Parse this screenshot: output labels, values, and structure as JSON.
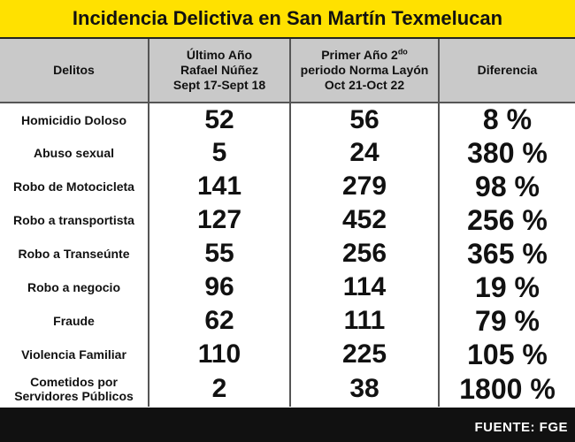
{
  "title": "Incidencia Delictiva en San Martín Texmelucan",
  "headers": {
    "col1": "Delitos",
    "col2_line1": "Último Año",
    "col2_line2": "Rafael Núñez",
    "col2_line3": "Sept 17-Sept 18",
    "col3_line1": "Primer Año 2",
    "col3_sup": "do",
    "col3_line2": "periodo Norma Layón",
    "col3_line3": "Oct 21-Oct 22",
    "col4": "Diferencia"
  },
  "rows": [
    {
      "crime_line1": "Homicidio Doloso",
      "crime_line2": "",
      "prev": "52",
      "curr": "56",
      "diff": "8 %"
    },
    {
      "crime_line1": "Abuso sexual",
      "crime_line2": "",
      "prev": "5",
      "curr": "24",
      "diff": "380 %"
    },
    {
      "crime_line1": "Robo de Motocicleta",
      "crime_line2": "",
      "prev": "141",
      "curr": "279",
      "diff": "98 %"
    },
    {
      "crime_line1": "Robo a transportista",
      "crime_line2": "",
      "prev": "127",
      "curr": "452",
      "diff": "256 %"
    },
    {
      "crime_line1": "Robo a Transeúnte",
      "crime_line2": "",
      "prev": "55",
      "curr": "256",
      "diff": "365 %"
    },
    {
      "crime_line1": "Robo a negocio",
      "crime_line2": "",
      "prev": "96",
      "curr": "114",
      "diff": "19 %"
    },
    {
      "crime_line1": "Fraude",
      "crime_line2": "",
      "prev": "62",
      "curr": "111",
      "diff": "79 %"
    },
    {
      "crime_line1": "Violencia Familiar",
      "crime_line2": "",
      "prev": "110",
      "curr": "225",
      "diff": "105 %"
    },
    {
      "crime_line1": "Cometidos por",
      "crime_line2": "Servidores Públicos",
      "prev": "2",
      "curr": "38",
      "diff": "1800 %"
    }
  ],
  "source": "FUENTE: FGE",
  "colors": {
    "title_bg": "#ffe100",
    "header_bg": "#c9c9c9",
    "frame": "#111111"
  }
}
